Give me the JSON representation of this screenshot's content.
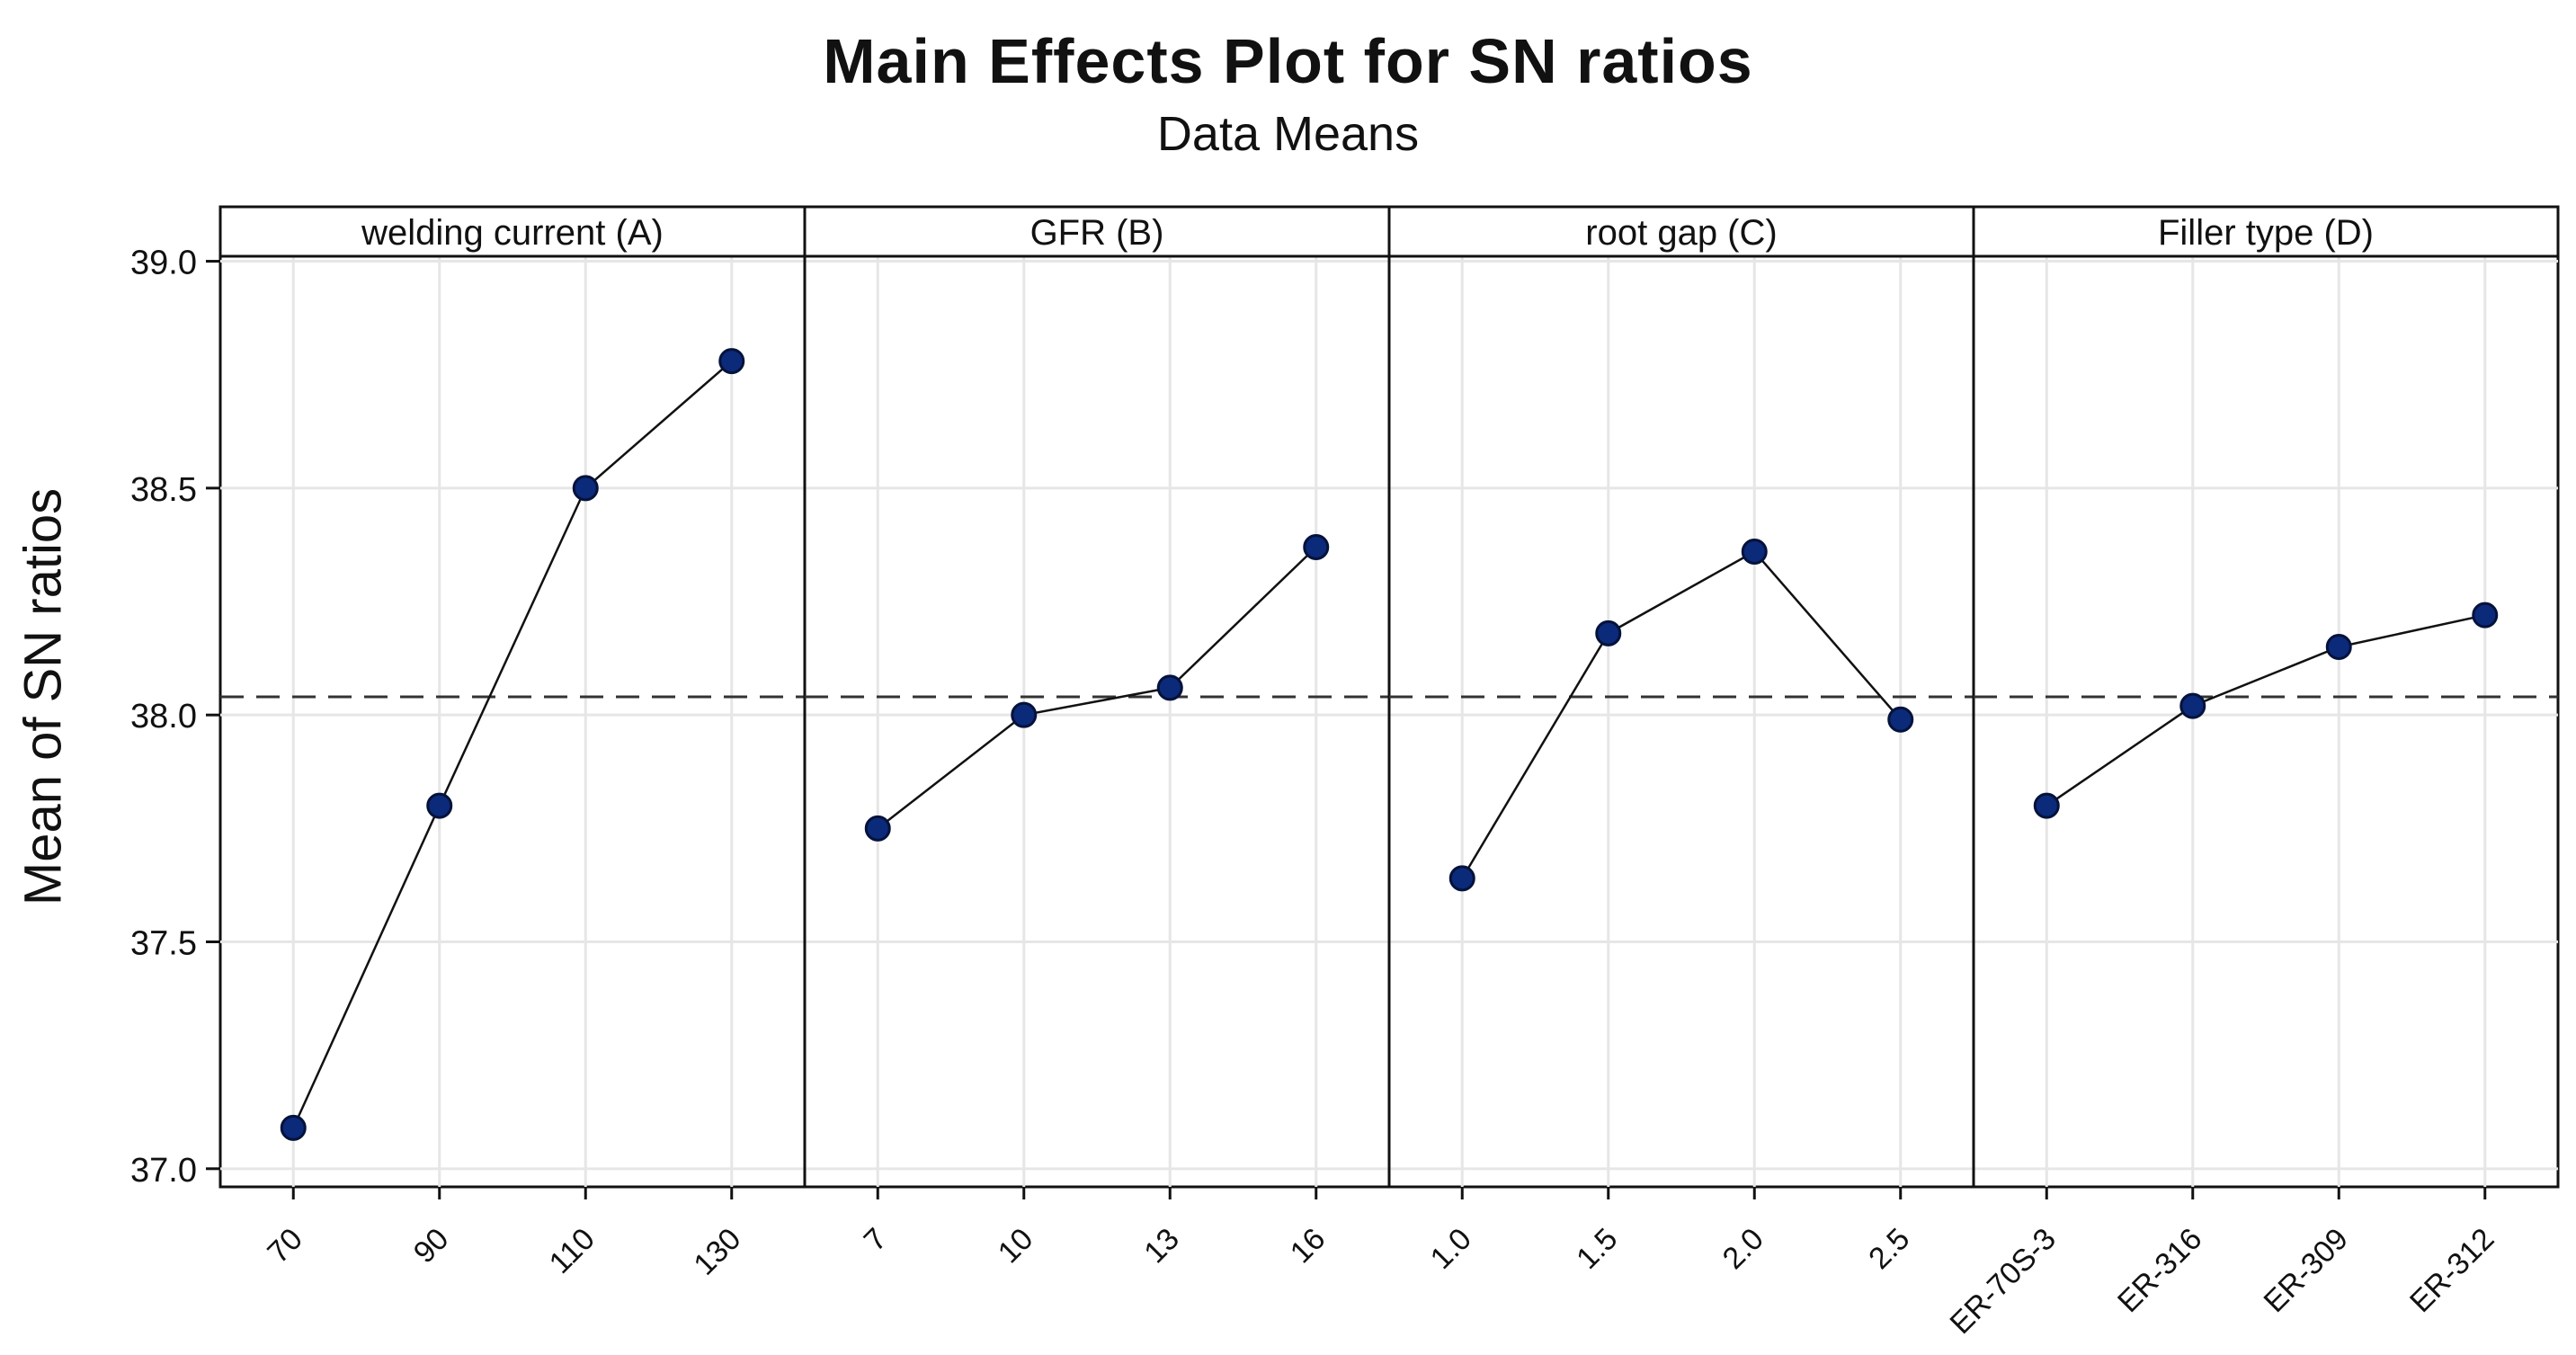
{
  "chart_data": {
    "type": "line",
    "title": "Main Effects Plot for SN ratios",
    "subtitle": "Data Means",
    "ylabel": "Mean of SN ratios",
    "ylim": [
      36.96,
      39.12
    ],
    "yticks": [
      "37.0",
      "37.5",
      "38.0",
      "38.5",
      "39.0"
    ],
    "reference_line": 38.04,
    "grid": true,
    "panels": [
      {
        "name": "welding current (A)",
        "categories": [
          "70",
          "90",
          "110",
          "130"
        ],
        "values": [
          37.09,
          37.8,
          38.5,
          38.78
        ]
      },
      {
        "name": "GFR (B)",
        "categories": [
          "7",
          "10",
          "13",
          "16"
        ],
        "values": [
          37.75,
          38.0,
          38.06,
          38.37
        ]
      },
      {
        "name": "root gap (C)",
        "categories": [
          "1.0",
          "1.5",
          "2.0",
          "2.5"
        ],
        "values": [
          37.64,
          38.18,
          38.36,
          37.99
        ]
      },
      {
        "name": "Filler type (D)",
        "categories": [
          "ER-70S-3",
          "ER-316",
          "ER-309",
          "ER-312"
        ],
        "values": [
          37.8,
          38.02,
          38.15,
          38.22
        ]
      }
    ],
    "colors": {
      "marker_fill": "#0b2a7a",
      "marker_stroke": "#05123a",
      "line": "#111111",
      "grid": "#e6e6e6",
      "reference": "#333333"
    }
  }
}
